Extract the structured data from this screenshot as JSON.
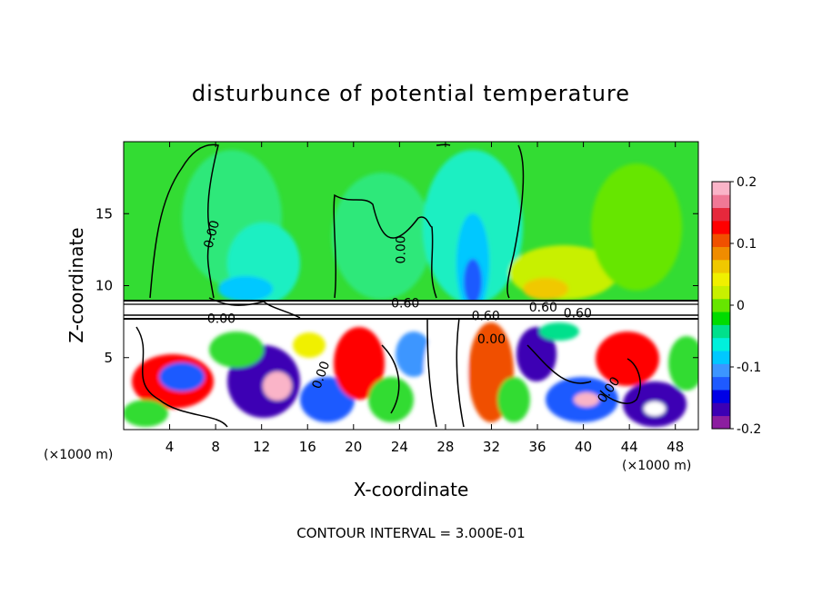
{
  "chart_data": {
    "type": "heatmap",
    "title": "disturbunce of potential temperature",
    "xlabel": "X-coordinate",
    "ylabel": "Z-coordinate",
    "x_unit": "(×1000 m)",
    "z_unit": "(×1000 m)",
    "x_ticks": [
      4,
      8,
      12,
      16,
      20,
      24,
      28,
      32,
      36,
      40,
      44,
      48
    ],
    "y_ticks": [
      5,
      10,
      15
    ],
    "xlim": [
      0,
      50
    ],
    "ylim": [
      0,
      20
    ],
    "colorbar": {
      "ticks": [
        -0.2,
        -0.1,
        0,
        0.1,
        0.2
      ],
      "tick_labels": [
        "-0.2",
        "-0.1",
        "0",
        "0.1",
        "0.2"
      ],
      "range": [
        -0.2,
        0.2
      ],
      "colors": [
        "#8c1ea0",
        "#3c00b4",
        "#0000e6",
        "#1e5aff",
        "#3c96ff",
        "#00c8ff",
        "#00f0dc",
        "#00e08c",
        "#00dc00",
        "#66e600",
        "#c8f000",
        "#f0f000",
        "#f0c800",
        "#f08c00",
        "#f05000",
        "#ff0000",
        "#e6283c",
        "#f07896",
        "#fab4c8"
      ]
    },
    "contour_labels": [
      {
        "text": "0.00",
        "x": 8.0,
        "y": 13.5,
        "angle": -75
      },
      {
        "text": "0.00",
        "x": 24.5,
        "y": 12.5,
        "angle": -90
      },
      {
        "text": "0.60",
        "x": 24.5,
        "y": 8.5,
        "angle": 0
      },
      {
        "text": "0.60",
        "x": 31.5,
        "y": 7.6,
        "angle": 0
      },
      {
        "text": "0.60",
        "x": 36.5,
        "y": 8.2,
        "angle": 0
      },
      {
        "text": "0.60",
        "x": 39.5,
        "y": 7.8,
        "angle": 0
      },
      {
        "text": "0.00",
        "x": 8.5,
        "y": 7.4,
        "angle": 0
      },
      {
        "text": "0.00",
        "x": 32.0,
        "y": 6.0,
        "angle": 0
      },
      {
        "text": "0.00",
        "x": 17.5,
        "y": 3.7,
        "angle": -70
      },
      {
        "text": "0.00",
        "x": 42.5,
        "y": 2.6,
        "angle": -55
      }
    ],
    "note": "CONTOUR INTERVAL = 3.000E-01"
  }
}
